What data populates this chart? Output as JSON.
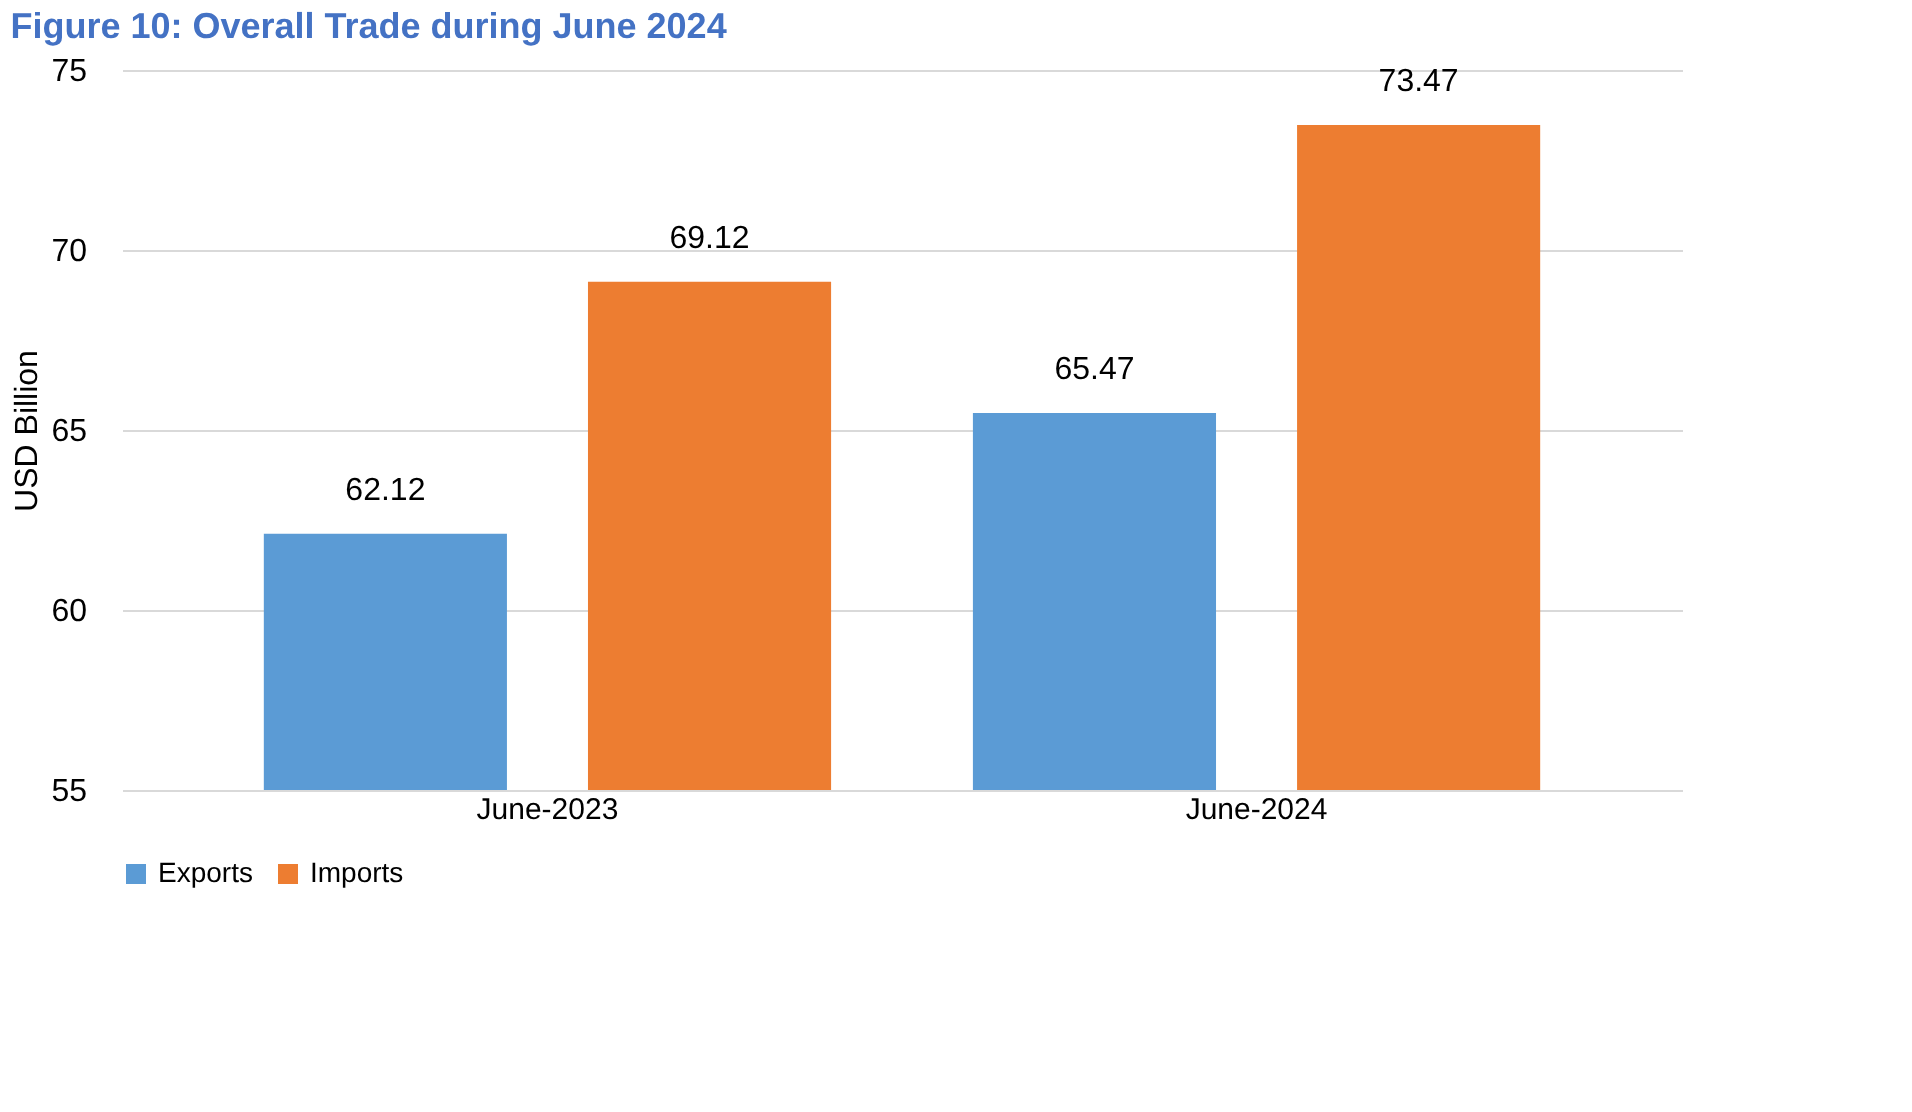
{
  "chart_data": {
    "type": "bar",
    "title": "Figure 10: Overall Trade during June 2024",
    "ylabel": "USD Billion",
    "categories": [
      "June-2023",
      "June-2024"
    ],
    "series": [
      {
        "name": "Exports",
        "color": "#5b9bd5",
        "values": [
          62.12,
          65.47
        ]
      },
      {
        "name": "Imports",
        "color": "#ed7d31",
        "values": [
          69.12,
          73.47
        ]
      }
    ],
    "ylim": [
      55,
      75
    ],
    "yticks": [
      55,
      60,
      65,
      70,
      75
    ],
    "grid": "y",
    "legend": "bottom",
    "data_labels": true
  }
}
